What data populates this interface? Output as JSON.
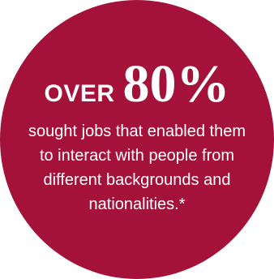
{
  "stat": {
    "prefix": "OVER",
    "value": "80%",
    "description": "sought jobs that enabled them to interact with people from different backgrounds and nationalities.*"
  },
  "colors": {
    "circle": "#a41139",
    "text": "#ffffff",
    "background": "#ffffff"
  }
}
